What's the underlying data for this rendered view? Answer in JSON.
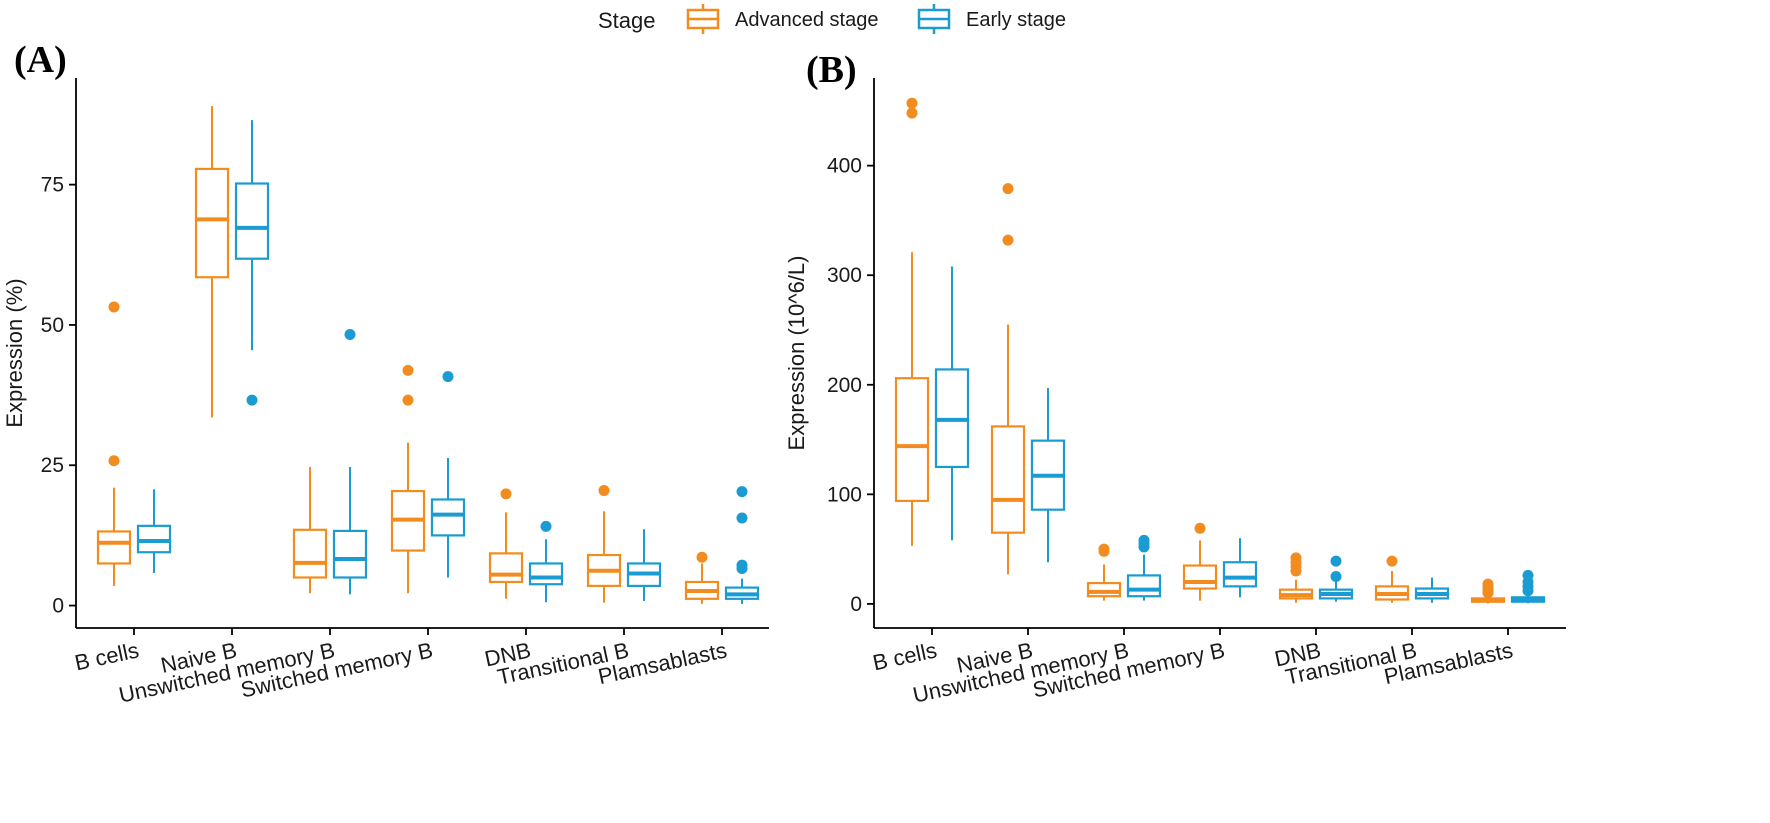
{
  "legend": {
    "title": "Stage",
    "items": [
      {
        "label": "Advanced stage",
        "color": "#F28C1E"
      },
      {
        "label": "Early stage",
        "color": "#1A9BD1"
      }
    ],
    "placement": "top-center"
  },
  "chart_data": [
    {
      "panel": "(A)",
      "type": "box",
      "ylabel": "Expression (%)",
      "xlabel": "",
      "ylim": [
        -4,
        94
      ],
      "yticks": [
        "0",
        "25",
        "50",
        "75"
      ],
      "categories": [
        "B cells",
        "Naive B",
        "Unswitched memory B",
        "Switched memory B",
        "DNB",
        "Transitional B",
        "Plamsablasts"
      ],
      "series": [
        {
          "name": "Advanced stage",
          "boxes": [
            {
              "min": 3.5,
              "q1": 7.5,
              "median": 11.2,
              "q3": 13.2,
              "max": 21,
              "outliers": [
                25.8,
                53.2
              ]
            },
            {
              "min": 33.5,
              "q1": 58.5,
              "median": 68.8,
              "q3": 77.8,
              "max": 89,
              "outliers": []
            },
            {
              "min": 2.2,
              "q1": 5,
              "median": 7.6,
              "q3": 13.5,
              "max": 24.7,
              "outliers": []
            },
            {
              "min": 2.2,
              "q1": 9.8,
              "median": 15.3,
              "q3": 20.4,
              "max": 29,
              "outliers": [
                36.6,
                41.9
              ]
            },
            {
              "min": 1.2,
              "q1": 4.2,
              "median": 5.5,
              "q3": 9.3,
              "max": 16.6,
              "outliers": [
                19.9
              ]
            },
            {
              "min": 0.5,
              "q1": 3.5,
              "median": 6.2,
              "q3": 9,
              "max": 16.8,
              "outliers": [
                20.5
              ]
            },
            {
              "min": 0.3,
              "q1": 1.2,
              "median": 2.6,
              "q3": 4.2,
              "max": 7.5,
              "outliers": [
                8.6
              ]
            }
          ]
        },
        {
          "name": "Early stage",
          "boxes": [
            {
              "min": 5.8,
              "q1": 9.5,
              "median": 11.5,
              "q3": 14.2,
              "max": 20.7,
              "outliers": []
            },
            {
              "min": 45.5,
              "q1": 61.8,
              "median": 67.3,
              "q3": 75.2,
              "max": 86.5,
              "outliers": [
                36.6
              ]
            },
            {
              "min": 2,
              "q1": 5,
              "median": 8.3,
              "q3": 13.3,
              "max": 24.7,
              "outliers": [
                48.3
              ]
            },
            {
              "min": 5,
              "q1": 12.5,
              "median": 16.2,
              "q3": 18.9,
              "max": 26.3,
              "outliers": [
                40.8
              ]
            },
            {
              "min": 0.6,
              "q1": 3.8,
              "median": 5,
              "q3": 7.5,
              "max": 11.8,
              "outliers": [
                14.1
              ]
            },
            {
              "min": 0.8,
              "q1": 3.5,
              "median": 5.7,
              "q3": 7.5,
              "max": 13.6,
              "outliers": []
            },
            {
              "min": 0.3,
              "q1": 1.2,
              "median": 2,
              "q3": 3.2,
              "max": 4.8,
              "outliers": [
                6.6,
                7.2,
                15.6,
                20.3
              ]
            }
          ]
        }
      ]
    },
    {
      "panel": "(B)",
      "type": "box",
      "ylabel": "Expression (10^6/L)",
      "xlabel": "",
      "ylim": [
        -22,
        480
      ],
      "yticks": [
        "0",
        "100",
        "200",
        "300",
        "400"
      ],
      "categories": [
        "B cells",
        "Naive B",
        "Unswitched memory B",
        "Switched memory B",
        "DNB",
        "Transitional B",
        "Plamsablasts"
      ],
      "series": [
        {
          "name": "Advanced stage",
          "boxes": [
            {
              "min": 53,
              "q1": 94,
              "median": 144,
              "q3": 206,
              "max": 321,
              "outliers": [
                448,
                457
              ]
            },
            {
              "min": 27,
              "q1": 65,
              "median": 95,
              "q3": 162,
              "max": 255,
              "outliers": [
                332,
                379
              ]
            },
            {
              "min": 3,
              "q1": 7,
              "median": 11,
              "q3": 19,
              "max": 36,
              "outliers": [
                48,
                50
              ]
            },
            {
              "min": 3,
              "q1": 14,
              "median": 20,
              "q3": 35,
              "max": 58,
              "outliers": [
                69
              ]
            },
            {
              "min": 1,
              "q1": 5,
              "median": 8,
              "q3": 13,
              "max": 22,
              "outliers": [
                30,
                34,
                38,
                42
              ]
            },
            {
              "min": 1,
              "q1": 4,
              "median": 9,
              "q3": 16,
              "max": 30,
              "outliers": [
                39
              ]
            },
            {
              "min": 0.5,
              "q1": 2,
              "median": 3,
              "q3": 5,
              "max": 8,
              "outliers": [
                10,
                12,
                14,
                16,
                18
              ]
            }
          ]
        },
        {
          "name": "Early stage",
          "boxes": [
            {
              "min": 58,
              "q1": 125,
              "median": 168,
              "q3": 214,
              "max": 308,
              "outliers": []
            },
            {
              "min": 38,
              "q1": 86,
              "median": 117,
              "q3": 149,
              "max": 197,
              "outliers": []
            },
            {
              "min": 3,
              "q1": 7,
              "median": 13,
              "q3": 26,
              "max": 45,
              "outliers": [
                52,
                55,
                58
              ]
            },
            {
              "min": 6,
              "q1": 16,
              "median": 24,
              "q3": 38,
              "max": 60,
              "outliers": []
            },
            {
              "min": 2,
              "q1": 5,
              "median": 9,
              "q3": 13,
              "max": 22,
              "outliers": [
                25,
                39
              ]
            },
            {
              "min": 1,
              "q1": 5,
              "median": 9,
              "q3": 14,
              "max": 24,
              "outliers": []
            },
            {
              "min": 0.5,
              "q1": 2,
              "median": 4,
              "q3": 6,
              "max": 9,
              "outliers": [
                12,
                16,
                20,
                26
              ]
            }
          ]
        }
      ]
    }
  ]
}
